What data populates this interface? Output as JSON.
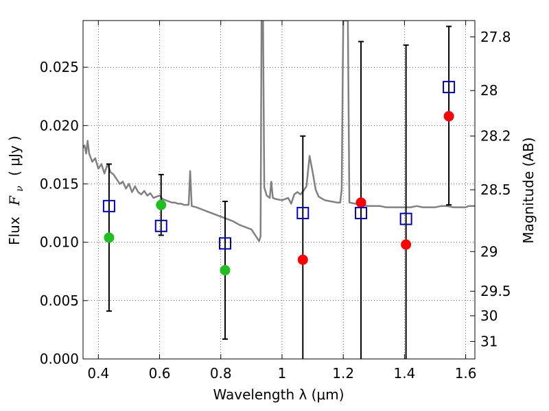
{
  "chart_data": {
    "type": "scatter",
    "xlabel": "Wavelength  λ (μm)",
    "ylabel": "Flux  F_ν  ( μJy )",
    "ylabel_parts": {
      "flux_label": "Flux",
      "symbol": "F",
      "subscript": "ν",
      "unit": "( μJy )"
    },
    "y2label": "Magnitude (AB)",
    "xlim": [
      0.35,
      1.63
    ],
    "ylim": [
      0.0,
      0.029
    ],
    "x_ticks": [
      0.4,
      0.6,
      0.8,
      1.0,
      1.2,
      1.4,
      1.6
    ],
    "x_tick_labels": [
      "0.4",
      "0.6",
      "0.8",
      "1",
      "1.2",
      "1.4",
      "1.6"
    ],
    "y_ticks": [
      0.0,
      0.005,
      0.01,
      0.015,
      0.02,
      0.025
    ],
    "y_tick_labels": [
      "0.000",
      "0.005",
      "0.010",
      "0.015",
      "0.020",
      "0.025"
    ],
    "magnitude_ticks": [
      {
        "label": "27.8",
        "flux": 0.0276
      },
      {
        "label": "28",
        "flux": 0.023
      },
      {
        "label": "28.2",
        "flux": 0.0191
      },
      {
        "label": "28.5",
        "flux": 0.0145
      },
      {
        "label": "29",
        "flux": 0.0092
      },
      {
        "label": "29.5",
        "flux": 0.0058
      },
      {
        "label": "30",
        "flux": 0.0037
      },
      {
        "label": "31",
        "flux": 0.0015
      }
    ],
    "grid": true,
    "series": [
      {
        "kind": "model-spectrum",
        "color": "#808080",
        "points": [
          [
            0.35,
            0.0181
          ],
          [
            0.355,
            0.0183
          ],
          [
            0.36,
            0.0176
          ],
          [
            0.365,
            0.0187
          ],
          [
            0.37,
            0.0176
          ],
          [
            0.38,
            0.0169
          ],
          [
            0.39,
            0.0172
          ],
          [
            0.4,
            0.0163
          ],
          [
            0.41,
            0.0167
          ],
          [
            0.42,
            0.0159
          ],
          [
            0.43,
            0.0167
          ],
          [
            0.44,
            0.016
          ],
          [
            0.45,
            0.0158
          ],
          [
            0.46,
            0.0154
          ],
          [
            0.47,
            0.015
          ],
          [
            0.48,
            0.0152
          ],
          [
            0.49,
            0.0146
          ],
          [
            0.5,
            0.015
          ],
          [
            0.51,
            0.0143
          ],
          [
            0.52,
            0.0148
          ],
          [
            0.53,
            0.0143
          ],
          [
            0.54,
            0.0141
          ],
          [
            0.55,
            0.0144
          ],
          [
            0.56,
            0.014
          ],
          [
            0.57,
            0.0142
          ],
          [
            0.58,
            0.0138
          ],
          [
            0.59,
            0.0139
          ],
          [
            0.6,
            0.014
          ],
          [
            0.61,
            0.0137
          ],
          [
            0.62,
            0.0136
          ],
          [
            0.63,
            0.0135
          ],
          [
            0.64,
            0.0134
          ],
          [
            0.65,
            0.0134
          ],
          [
            0.66,
            0.0133
          ],
          [
            0.67,
            0.0133
          ],
          [
            0.68,
            0.0132
          ],
          [
            0.69,
            0.0132
          ],
          [
            0.695,
            0.0132
          ],
          [
            0.7,
            0.0161
          ],
          [
            0.705,
            0.0131
          ],
          [
            0.72,
            0.013
          ],
          [
            0.74,
            0.0128
          ],
          [
            0.76,
            0.0126
          ],
          [
            0.78,
            0.0124
          ],
          [
            0.8,
            0.0122
          ],
          [
            0.82,
            0.012
          ],
          [
            0.84,
            0.0118
          ],
          [
            0.86,
            0.0115
          ],
          [
            0.88,
            0.0113
          ],
          [
            0.9,
            0.0111
          ],
          [
            0.92,
            0.0103
          ],
          [
            0.925,
            0.0101
          ],
          [
            0.93,
            0.0105
          ],
          [
            0.933,
            0.029
          ],
          [
            0.938,
            0.029
          ],
          [
            0.942,
            0.0147
          ],
          [
            0.95,
            0.014
          ],
          [
            0.96,
            0.0138
          ],
          [
            0.965,
            0.0152
          ],
          [
            0.97,
            0.0138
          ],
          [
            0.98,
            0.0137
          ],
          [
            1.0,
            0.0136
          ],
          [
            1.02,
            0.0138
          ],
          [
            1.03,
            0.0133
          ],
          [
            1.04,
            0.0141
          ],
          [
            1.05,
            0.0143
          ],
          [
            1.06,
            0.0141
          ],
          [
            1.07,
            0.0144
          ],
          [
            1.08,
            0.0148
          ],
          [
            1.09,
            0.0174
          ],
          [
            1.1,
            0.016
          ],
          [
            1.11,
            0.0145
          ],
          [
            1.12,
            0.0139
          ],
          [
            1.14,
            0.0136
          ],
          [
            1.16,
            0.0135
          ],
          [
            1.18,
            0.0134
          ],
          [
            1.19,
            0.0134
          ],
          [
            1.195,
            0.0145
          ],
          [
            1.2,
            0.029
          ],
          [
            1.215,
            0.029
          ],
          [
            1.22,
            0.0134
          ],
          [
            1.24,
            0.0133
          ],
          [
            1.26,
            0.0132
          ],
          [
            1.28,
            0.0131
          ],
          [
            1.3,
            0.0131
          ],
          [
            1.32,
            0.0131
          ],
          [
            1.34,
            0.013
          ],
          [
            1.36,
            0.013
          ],
          [
            1.38,
            0.013
          ],
          [
            1.4,
            0.013
          ],
          [
            1.42,
            0.013
          ],
          [
            1.44,
            0.0131
          ],
          [
            1.46,
            0.013
          ],
          [
            1.48,
            0.013
          ],
          [
            1.5,
            0.013
          ],
          [
            1.52,
            0.0131
          ],
          [
            1.54,
            0.0131
          ],
          [
            1.56,
            0.013
          ],
          [
            1.58,
            0.013
          ],
          [
            1.6,
            0.013
          ],
          [
            1.61,
            0.0131
          ],
          [
            1.63,
            0.0131
          ]
        ]
      },
      {
        "kind": "observed-green",
        "color": "#1fbf1f",
        "points": [
          [
            0.435,
            0.0104
          ],
          [
            0.605,
            0.0132
          ],
          [
            0.814,
            0.0076
          ]
        ]
      },
      {
        "kind": "observed-red",
        "color": "#ff0000",
        "points": [
          [
            1.068,
            0.0085
          ],
          [
            1.258,
            0.0134
          ],
          [
            1.405,
            0.0098
          ],
          [
            1.545,
            0.0208
          ]
        ]
      },
      {
        "kind": "model-photometry",
        "color": "#0000cc",
        "points": [
          [
            0.435,
            0.0131
          ],
          [
            0.605,
            0.0114
          ],
          [
            0.814,
            0.0099
          ],
          [
            1.068,
            0.0125
          ],
          [
            1.258,
            0.0125
          ],
          [
            1.405,
            0.012
          ],
          [
            1.545,
            0.0233
          ]
        ]
      },
      {
        "kind": "error-bars",
        "color": "#000000",
        "bars": [
          {
            "x": 0.435,
            "low": 0.0041,
            "high": 0.0167
          },
          {
            "x": 0.605,
            "low": 0.0106,
            "high": 0.0158
          },
          {
            "x": 0.814,
            "low": 0.0017,
            "high": 0.0135
          },
          {
            "x": 1.068,
            "low": 0.0,
            "high": 0.0191
          },
          {
            "x": 1.258,
            "low": 0.0,
            "high": 0.0272
          },
          {
            "x": 1.405,
            "low": 0.0,
            "high": 0.0269
          },
          {
            "x": 1.545,
            "low": 0.0132,
            "high": 0.0285
          }
        ]
      }
    ]
  }
}
